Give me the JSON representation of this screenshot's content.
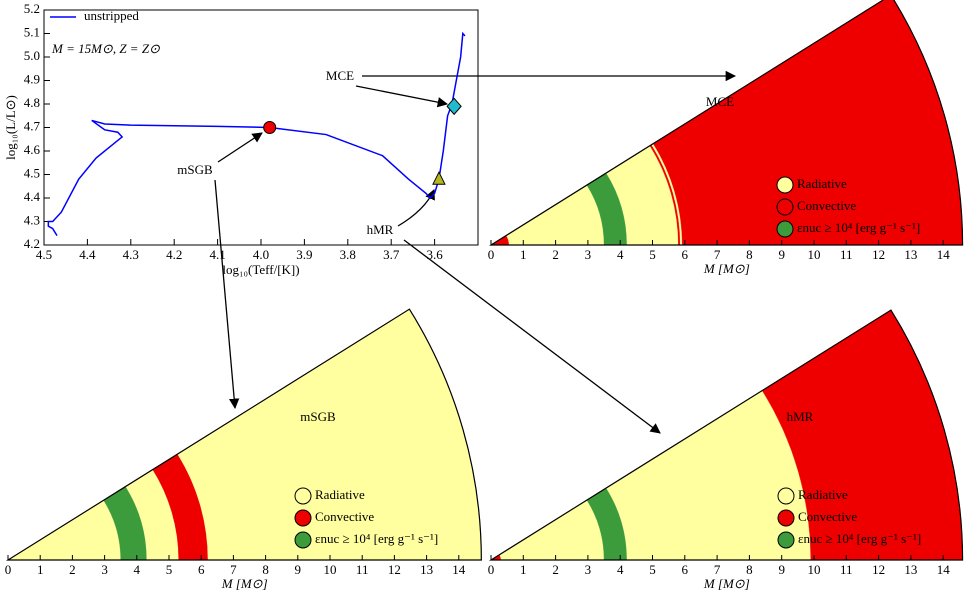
{
  "chart_data": [
    {
      "type": "line",
      "xlabel": "log₁₀(Teff/[K])",
      "ylabel": "log₁₀(L/L⊙)",
      "annotation": "M = 15M⊙, Z = Z⊙",
      "xlim": [
        4.5,
        3.5
      ],
      "ylim": [
        4.2,
        5.2
      ],
      "xticks": [
        4.5,
        4.4,
        4.3,
        4.2,
        4.1,
        {
          "value": 4,
          "label": "4.0"
        },
        3.9,
        3.8,
        3.7,
        3.6
      ],
      "yticks": [
        4.2,
        4.3,
        4.4,
        4.5,
        4.6,
        4.7,
        4.8,
        4.9,
        {
          "value": 5,
          "label": "5.0"
        },
        5.1,
        5.2
      ],
      "series": [
        {
          "name": "unstripped",
          "color": "#0000ff",
          "x": [
            4.47,
            4.48,
            4.49,
            4.49,
            4.48,
            4.46,
            4.42,
            4.38,
            4.34,
            4.32,
            4.33,
            4.36,
            4.39,
            4.36,
            4.3,
            4.1,
            3.98,
            3.85,
            3.72,
            3.66,
            3.62,
            3.61,
            3.6,
            3.59,
            3.58,
            3.57,
            3.56,
            3.55,
            3.54,
            3.535,
            3.53
          ],
          "values": [
            4.24,
            4.27,
            4.28,
            4.3,
            4.3,
            4.34,
            4.48,
            4.57,
            4.63,
            4.66,
            4.68,
            4.69,
            4.73,
            4.715,
            4.71,
            4.705,
            4.7,
            4.67,
            4.58,
            4.48,
            4.42,
            4.4,
            4.42,
            4.48,
            4.6,
            4.75,
            4.8,
            4.9,
            5.0,
            5.1,
            5.09
          ]
        }
      ],
      "points": [
        {
          "name": "mSGB",
          "x": 3.98,
          "y": 4.7,
          "color": "#ee0000",
          "marker": "circle"
        },
        {
          "name": "hMR",
          "x": 3.59,
          "y": 4.48,
          "color": "#b5b520",
          "marker": "triangle"
        },
        {
          "name": "MCE",
          "x": 3.555,
          "y": 4.79,
          "color": "#22bbcc",
          "marker": "diamond"
        }
      ]
    },
    {
      "type": "wedge",
      "title": "MCE",
      "xlabel": "M [M⊙]",
      "xlim": [
        0,
        14.6
      ],
      "xticks": [
        0,
        1,
        2,
        3,
        4,
        5,
        6,
        7,
        8,
        9,
        10,
        11,
        12,
        13,
        14
      ],
      "series": [
        {
          "name": "Radiative",
          "color": "#ffffa0",
          "intervals": [
            [
              0.55,
              3.5
            ],
            [
              4.2,
              5.8
            ],
            [
              5.85,
              5.92
            ]
          ]
        },
        {
          "name": "Convective",
          "color": "#ee0000",
          "intervals": [
            [
              0,
              0.55
            ],
            [
              5.8,
              5.85
            ],
            [
              5.92,
              14.6
            ]
          ]
        },
        {
          "name": "εnuc ≥ 10⁴ [erg g⁻¹ s⁻¹]",
          "color": "#3c9c3c",
          "intervals": [
            [
              3.5,
              4.2
            ]
          ]
        }
      ]
    },
    {
      "type": "wedge",
      "title": "mSGB",
      "xlabel": "M [M⊙]",
      "xlim": [
        0,
        14.7
      ],
      "xticks": [
        0,
        1,
        2,
        3,
        4,
        5,
        6,
        7,
        8,
        9,
        10,
        11,
        12,
        13,
        14
      ],
      "series": [
        {
          "name": "Radiative",
          "color": "#ffffa0",
          "intervals": [
            [
              0,
              3.5
            ],
            [
              4.3,
              5.3
            ],
            [
              6.2,
              14.7
            ]
          ]
        },
        {
          "name": "Convective",
          "color": "#ee0000",
          "intervals": [
            [
              5.3,
              6.2
            ]
          ]
        },
        {
          "name": "εnuc ≥ 10⁴ [erg g⁻¹ s⁻¹]",
          "color": "#3c9c3c",
          "intervals": [
            [
              3.5,
              4.3
            ]
          ]
        }
      ]
    },
    {
      "type": "wedge",
      "title": "hMR",
      "xlabel": "M [M⊙]",
      "xlim": [
        0,
        14.6
      ],
      "xticks": [
        0,
        1,
        2,
        3,
        4,
        5,
        6,
        7,
        8,
        9,
        10,
        11,
        12,
        13,
        14
      ],
      "series": [
        {
          "name": "Radiative",
          "color": "#ffffa0",
          "intervals": [
            [
              0.3,
              3.5
            ],
            [
              4.2,
              9.9
            ]
          ]
        },
        {
          "name": "Convective",
          "color": "#ee0000",
          "intervals": [
            [
              0,
              0.3
            ],
            [
              9.9,
              14.6
            ]
          ]
        },
        {
          "name": "εnuc ≥ 10⁴ [erg g⁻¹ s⁻¹]",
          "color": "#3c9c3c",
          "intervals": [
            [
              3.5,
              4.2
            ]
          ]
        }
      ]
    }
  ]
}
